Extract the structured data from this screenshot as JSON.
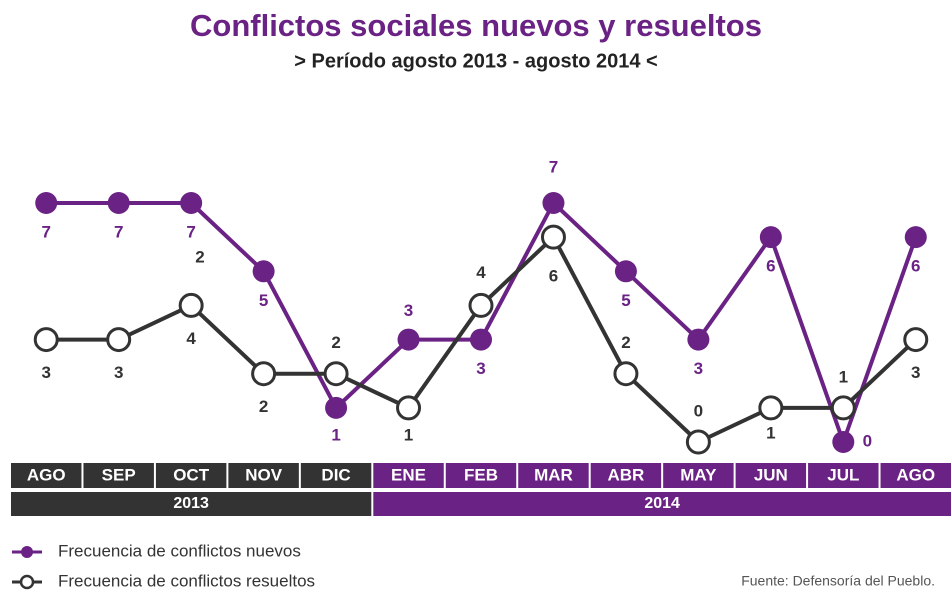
{
  "chart_data": {
    "type": "line",
    "title": "Conflictos sociales nuevos y resueltos",
    "subtitle": "> Período agosto 2013 - agosto 2014 <",
    "categories": [
      "AGO",
      "SEP",
      "OCT",
      "NOV",
      "DIC",
      "ENE",
      "FEB",
      "MAR",
      "ABR",
      "MAY",
      "JUN",
      "JUL",
      "AGO"
    ],
    "x_groups": [
      {
        "label": "2013",
        "start": 0,
        "end": 4,
        "color": "#333333"
      },
      {
        "label": "2014",
        "start": 5,
        "end": 12,
        "color": "#6b2285"
      }
    ],
    "series": [
      {
        "name": "Frecuencia de conflictos nuevos",
        "color": "#6b2285",
        "marker": "filled",
        "values": [
          7,
          7,
          7,
          5,
          1,
          3,
          3,
          7,
          5,
          3,
          6,
          0,
          6
        ]
      },
      {
        "name": "Frecuencia de conflictos resueltos",
        "color": "#333333",
        "marker": "hollow",
        "values": [
          3,
          3,
          4,
          2,
          2,
          1,
          4,
          6,
          2,
          0,
          1,
          1,
          3
        ]
      }
    ],
    "annotations": [
      "2"
    ],
    "source": "Fuente: Defensoría del Pueblo."
  }
}
